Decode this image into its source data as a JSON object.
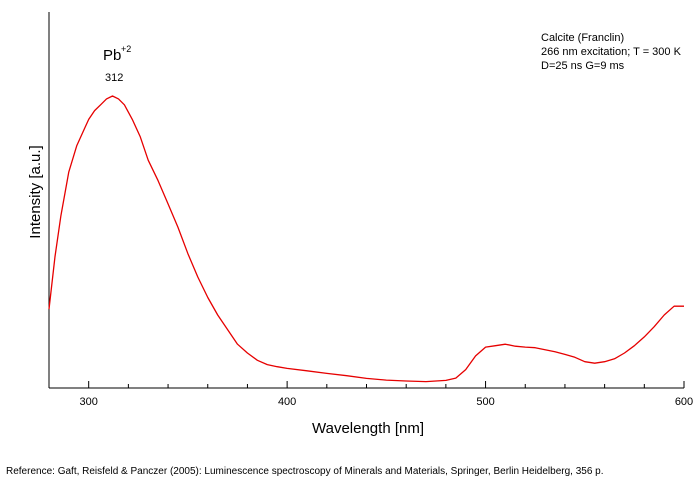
{
  "chart_data": {
    "type": "line",
    "xlabel": "Wavelength [nm]",
    "ylabel": "Intensity [a.u.]",
    "xlim": [
      280,
      600
    ],
    "ylim": [
      0,
      100
    ],
    "x_ticks": [
      300,
      400,
      500,
      600
    ],
    "x_minor_step": 20,
    "grid": false,
    "legend": "none",
    "line_color": "#e60000",
    "info_lines": [
      "Calcite (Franclin)",
      "266 nm excitation; T = 300 K",
      "D=25 ns G=9 ms"
    ],
    "peak_annotation": {
      "species": "Pb",
      "species_superscript": "+2",
      "value_label": "312",
      "x": 312
    },
    "series": [
      {
        "x": [
          280,
          283,
          286,
          290,
          294,
          298,
          300,
          303,
          306,
          309,
          312,
          315,
          318,
          322,
          326,
          330,
          335,
          340,
          345,
          350,
          355,
          360,
          365,
          370,
          375,
          380,
          385,
          390,
          395,
          400,
          410,
          420,
          430,
          440,
          450,
          460,
          470,
          480,
          485,
          490,
          495,
          500,
          505,
          510,
          515,
          520,
          525,
          530,
          535,
          540,
          545,
          550,
          555,
          560,
          565,
          570,
          575,
          580,
          585,
          590,
          595,
          600
        ],
        "y": [
          27,
          45,
          59,
          74,
          83,
          89,
          92,
          95,
          97,
          99,
          100,
          99,
          97,
          92,
          86,
          78,
          71,
          63,
          55,
          46,
          38,
          31,
          25,
          20,
          15,
          12,
          9.5,
          8,
          7.3,
          6.7,
          5.9,
          5,
          4.2,
          3.3,
          2.7,
          2.4,
          2.2,
          2.6,
          3.4,
          6.3,
          11,
          14,
          14.5,
          15,
          14.3,
          14,
          13.8,
          13.1,
          12.4,
          11.5,
          10.5,
          9,
          8.5,
          9,
          10,
          12,
          14.5,
          17.5,
          21,
          25,
          28,
          28
        ]
      }
    ]
  },
  "reference": "Reference: Gaft, Reisfeld & Panczer (2005): Luminescence spectroscopy of Minerals and Materials, Springer, Berlin Heidelberg, 356 p."
}
